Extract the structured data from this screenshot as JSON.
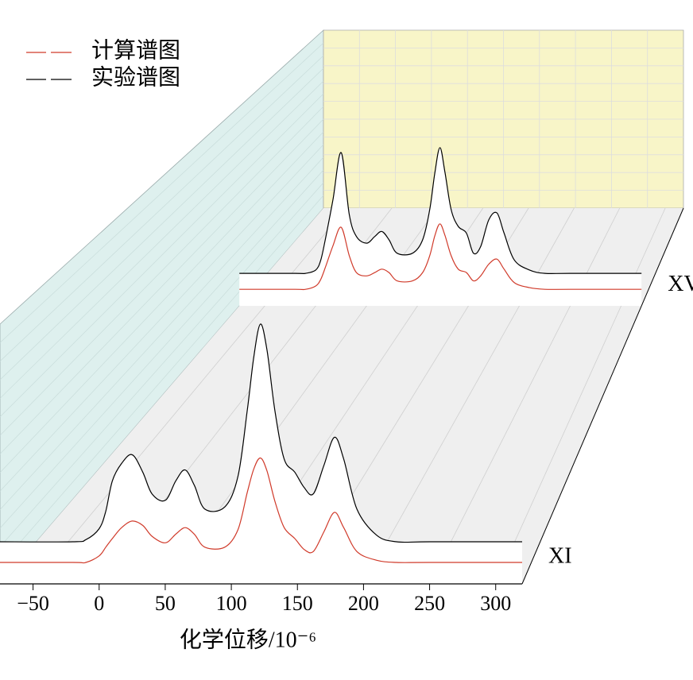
{
  "chart_data": {
    "type": "waterfall",
    "x_label": "化学位移/10⁻⁶",
    "xlim": [
      -75,
      320
    ],
    "xticks": [
      {
        "value": -50,
        "label": "−50"
      },
      0,
      50,
      100,
      150,
      200,
      250,
      300
    ],
    "grid": true,
    "series": [
      {
        "name": "计算谱图",
        "color": "#d03a2a"
      },
      {
        "name": "实验谱图",
        "color": "#000000"
      }
    ],
    "x": [
      -75,
      -20,
      -10,
      0,
      5,
      10,
      17,
      25,
      33,
      40,
      50,
      58,
      65,
      72,
      80,
      95,
      105,
      112,
      117,
      122,
      127,
      133,
      140,
      148,
      155,
      162,
      170,
      178,
      185,
      195,
      210,
      225,
      250,
      320
    ],
    "spectra": [
      {
        "label": "XI",
        "values": [
          [
            0,
            0,
            0,
            3,
            7,
            11,
            16,
            19,
            17,
            12,
            9,
            13,
            16,
            13,
            7,
            7,
            15,
            32,
            43,
            48,
            42,
            28,
            16,
            11,
            6,
            5,
            14,
            23,
            16,
            5,
            1,
            0,
            0,
            0
          ],
          [
            0,
            0,
            1,
            6,
            14,
            28,
            36,
            40,
            32,
            22,
            19,
            28,
            33,
            26,
            15,
            16,
            30,
            60,
            85,
            100,
            88,
            60,
            38,
            32,
            25,
            22,
            35,
            48,
            38,
            15,
            3,
            0,
            0,
            0
          ]
        ]
      },
      {
        "label": "XV",
        "values": [
          [
            0,
            0,
            0,
            2,
            6,
            14,
            26,
            37,
            20,
            10,
            8,
            10,
            12,
            10,
            5,
            5,
            10,
            20,
            32,
            39,
            32,
            20,
            12,
            10,
            5,
            8,
            15,
            18,
            12,
            4,
            1,
            0,
            0,
            0
          ],
          [
            0,
            0,
            0,
            2,
            8,
            22,
            44,
            72,
            35,
            22,
            18,
            22,
            25,
            20,
            12,
            12,
            20,
            38,
            60,
            75,
            60,
            38,
            28,
            24,
            12,
            16,
            32,
            36,
            24,
            8,
            2,
            0,
            0,
            0
          ]
        ]
      }
    ]
  }
}
